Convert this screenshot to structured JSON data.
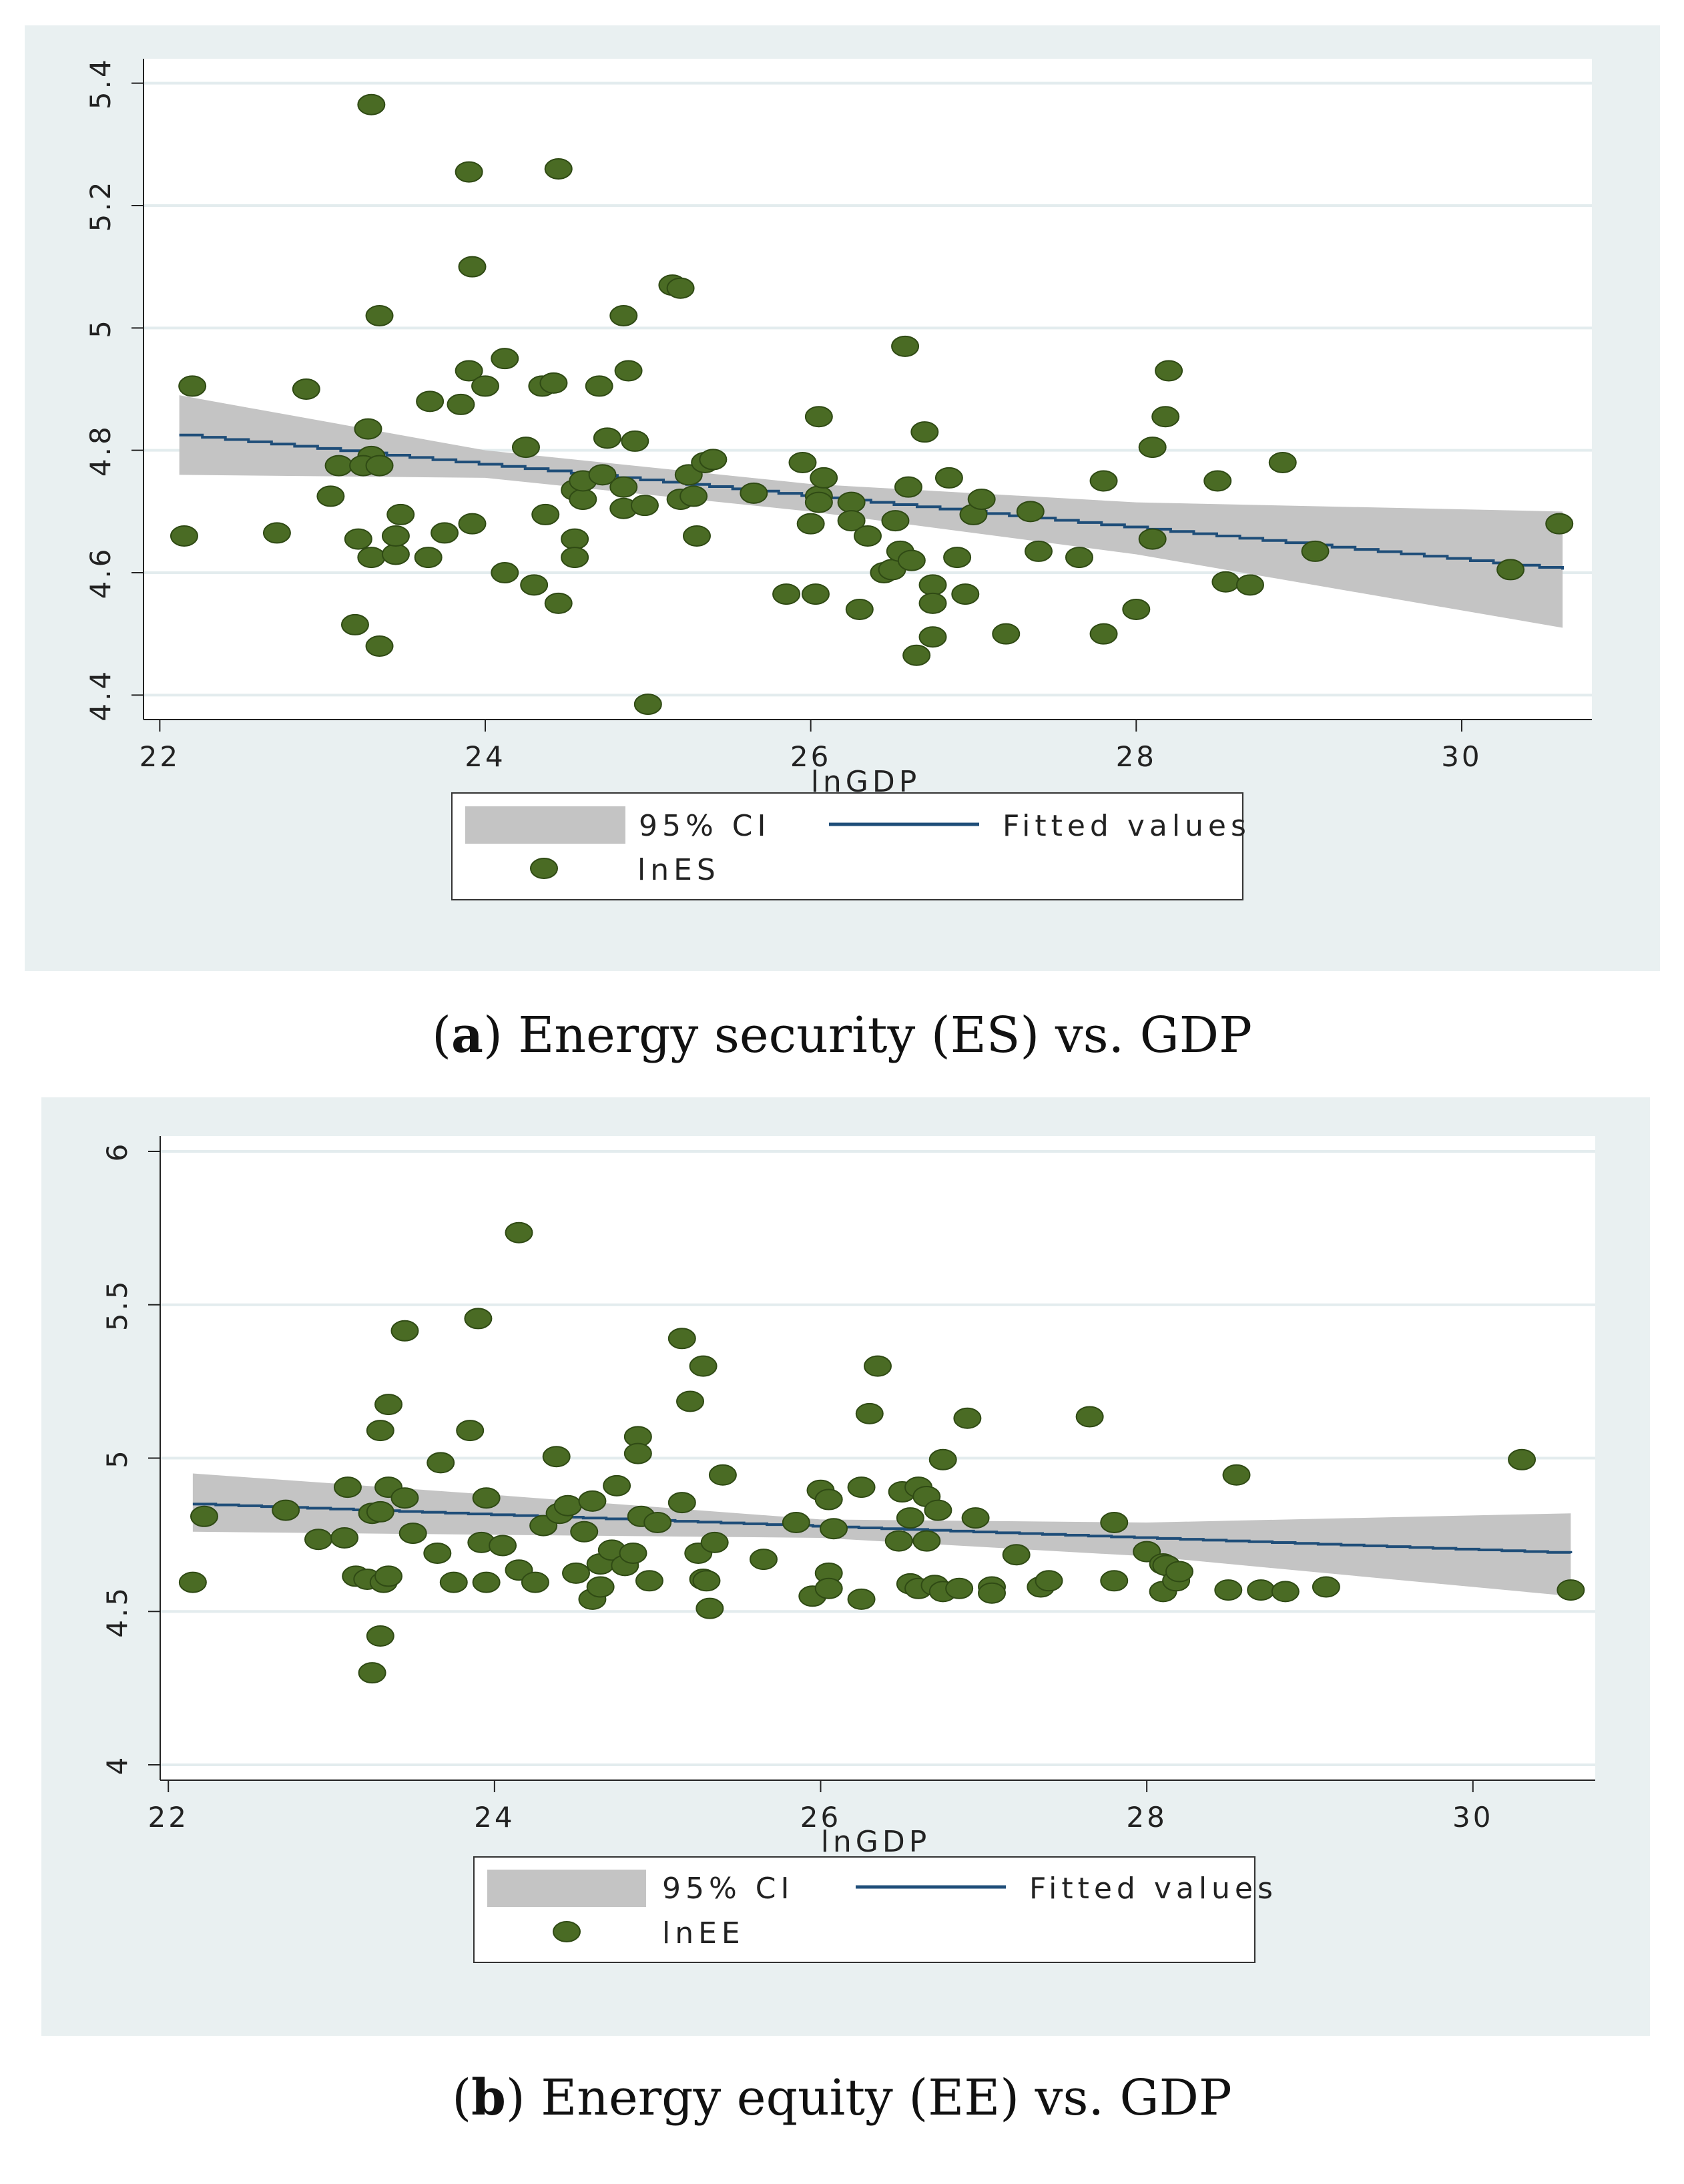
{
  "figures": [
    {
      "id": "a",
      "caption_letter": "a",
      "caption_text": ") Energy security (ES) vs. GDP",
      "caption_open": "(",
      "legend": {
        "ci": "95% CI",
        "fit": "Fitted values",
        "scatter": "lnES"
      }
    },
    {
      "id": "b",
      "caption_letter": "b",
      "caption_text": ") Energy equity (EE) vs. GDP",
      "caption_open": "(",
      "legend": {
        "ci": "95% CI",
        "fit": "Fitted values",
        "scatter": "lnEE"
      }
    }
  ],
  "colors": {
    "panel_bg": "#e9f0f1",
    "plot_bg": "#ffffff",
    "grid": "#e3ecee",
    "ci": "#c4c4c4",
    "fit": "#1f4e79",
    "point": "#4a6b24",
    "point_edge": "#2f4a14"
  },
  "chart_data": [
    {
      "type": "scatter",
      "title": "",
      "xlabel": "lnGDP",
      "ylabel": "",
      "xlim": [
        21.9,
        30.8
      ],
      "ylim": [
        4.36,
        5.44
      ],
      "xticks": [
        22,
        24,
        26,
        28,
        30
      ],
      "yticks": [
        4.4,
        4.6,
        4.8,
        5,
        5.2,
        5.4
      ],
      "xtick_labels": [
        "22",
        "24",
        "26",
        "28",
        "30"
      ],
      "ytick_labels": [
        "4.4",
        "4.6",
        "4.8",
        "5",
        "5.2",
        "5.4"
      ],
      "fit": {
        "name": "Fitted values",
        "x": [
          22.12,
          30.62
        ],
        "y": [
          4.825,
          4.605
        ]
      },
      "ci": {
        "name": "95% CI",
        "x": [
          22.12,
          24,
          26,
          28,
          30.62
        ],
        "lower": [
          4.76,
          4.755,
          4.7,
          4.63,
          4.51
        ],
        "upper": [
          4.89,
          4.8,
          4.745,
          4.715,
          4.7
        ]
      },
      "series": [
        {
          "name": "lnES",
          "points": [
            [
              22.15,
              4.66
            ],
            [
              22.2,
              4.905
            ],
            [
              22.72,
              4.665
            ],
            [
              22.9,
              4.9
            ],
            [
              23.05,
              4.725
            ],
            [
              23.1,
              4.775
            ],
            [
              23.2,
              4.515
            ],
            [
              23.22,
              4.655
            ],
            [
              23.28,
              4.835
            ],
            [
              23.3,
              4.79
            ],
            [
              23.25,
              4.775
            ],
            [
              23.3,
              4.625
            ],
            [
              23.3,
              5.365
            ],
            [
              23.35,
              4.775
            ],
            [
              23.35,
              4.48
            ],
            [
              23.35,
              5.02
            ],
            [
              23.45,
              4.63
            ],
            [
              23.45,
              4.66
            ],
            [
              23.48,
              4.695
            ],
            [
              23.65,
              4.625
            ],
            [
              23.66,
              4.88
            ],
            [
              23.75,
              4.665
            ],
            [
              23.85,
              4.875
            ],
            [
              23.9,
              4.93
            ],
            [
              23.9,
              5.255
            ],
            [
              23.92,
              5.1
            ],
            [
              23.92,
              4.68
            ],
            [
              24.0,
              4.905
            ],
            [
              24.12,
              4.6
            ],
            [
              24.12,
              4.95
            ],
            [
              24.25,
              4.805
            ],
            [
              24.3,
              4.58
            ],
            [
              24.35,
              4.905
            ],
            [
              24.37,
              4.695
            ],
            [
              24.42,
              4.91
            ],
            [
              24.45,
              4.55
            ],
            [
              24.45,
              5.26
            ],
            [
              24.55,
              4.655
            ],
            [
              24.55,
              4.625
            ],
            [
              24.55,
              4.735
            ],
            [
              24.6,
              4.72
            ],
            [
              24.6,
              4.75
            ],
            [
              24.7,
              4.905
            ],
            [
              24.72,
              4.76
            ],
            [
              24.75,
              4.82
            ],
            [
              24.85,
              4.74
            ],
            [
              24.85,
              4.705
            ],
            [
              24.85,
              5.02
            ],
            [
              24.88,
              4.93
            ],
            [
              24.92,
              4.815
            ],
            [
              24.98,
              4.71
            ],
            [
              25.0,
              4.385
            ],
            [
              25.15,
              5.07
            ],
            [
              25.2,
              5.065
            ],
            [
              25.2,
              4.72
            ],
            [
              25.25,
              4.76
            ],
            [
              25.28,
              4.725
            ],
            [
              25.3,
              4.66
            ],
            [
              25.35,
              4.78
            ],
            [
              25.4,
              4.785
            ],
            [
              25.65,
              4.73
            ],
            [
              25.85,
              4.565
            ],
            [
              25.95,
              4.78
            ],
            [
              26.0,
              4.68
            ],
            [
              26.03,
              4.565
            ],
            [
              26.05,
              4.855
            ],
            [
              26.05,
              4.725
            ],
            [
              26.05,
              4.715
            ],
            [
              26.08,
              4.755
            ],
            [
              26.25,
              4.715
            ],
            [
              26.25,
              4.685
            ],
            [
              26.3,
              4.54
            ],
            [
              26.35,
              4.66
            ],
            [
              26.45,
              4.6
            ],
            [
              26.5,
              4.605
            ],
            [
              26.52,
              4.685
            ],
            [
              26.55,
              4.635
            ],
            [
              26.58,
              4.97
            ],
            [
              26.6,
              4.74
            ],
            [
              26.62,
              4.62
            ],
            [
              26.65,
              4.465
            ],
            [
              26.7,
              4.83
            ],
            [
              26.75,
              4.58
            ],
            [
              26.75,
              4.55
            ],
            [
              26.75,
              4.495
            ],
            [
              26.85,
              4.755
            ],
            [
              26.9,
              4.625
            ],
            [
              26.95,
              4.565
            ],
            [
              27.0,
              4.695
            ],
            [
              27.05,
              4.72
            ],
            [
              27.2,
              4.5
            ],
            [
              27.35,
              4.7
            ],
            [
              27.4,
              4.635
            ],
            [
              27.65,
              4.625
            ],
            [
              27.8,
              4.5
            ],
            [
              27.8,
              4.75
            ],
            [
              28.0,
              4.54
            ],
            [
              28.1,
              4.805
            ],
            [
              28.1,
              4.655
            ],
            [
              28.18,
              4.855
            ],
            [
              28.2,
              4.93
            ],
            [
              28.5,
              4.75
            ],
            [
              28.55,
              4.585
            ],
            [
              28.7,
              4.58
            ],
            [
              28.9,
              4.78
            ],
            [
              29.1,
              4.635
            ],
            [
              30.3,
              4.605
            ],
            [
              30.6,
              4.68
            ]
          ]
        }
      ]
    },
    {
      "type": "scatter",
      "title": "",
      "xlabel": "lnGDP",
      "ylabel": "",
      "xlim": [
        21.95,
        30.75
      ],
      "ylim": [
        3.95,
        6.05
      ],
      "xticks": [
        22,
        24,
        26,
        28,
        30
      ],
      "yticks": [
        4,
        4.5,
        5,
        5.5,
        6
      ],
      "xtick_labels": [
        "22",
        "24",
        "26",
        "28",
        "30"
      ],
      "ytick_labels": [
        "4",
        "4.5",
        "5",
        "5.5",
        "6"
      ],
      "fit": {
        "name": "Fitted values",
        "x": [
          22.15,
          30.6
        ],
        "y": [
          4.85,
          4.69
        ]
      },
      "ci": {
        "name": "95% CI",
        "x": [
          22.15,
          24,
          26,
          28,
          30.6
        ],
        "lower": [
          4.76,
          4.75,
          4.74,
          4.68,
          4.55
        ],
        "upper": [
          4.95,
          4.88,
          4.8,
          4.79,
          4.82
        ]
      },
      "series": [
        {
          "name": "lnEE",
          "points": [
            [
              22.15,
              4.595
            ],
            [
              22.22,
              4.81
            ],
            [
              22.72,
              4.83
            ],
            [
              22.92,
              4.735
            ],
            [
              23.08,
              4.74
            ],
            [
              23.1,
              4.905
            ],
            [
              23.15,
              4.615
            ],
            [
              23.22,
              4.605
            ],
            [
              23.25,
              4.82
            ],
            [
              23.25,
              4.3
            ],
            [
              23.3,
              4.825
            ],
            [
              23.3,
              5.09
            ],
            [
              23.3,
              4.42
            ],
            [
              23.32,
              4.595
            ],
            [
              23.35,
              4.905
            ],
            [
              23.35,
              5.175
            ],
            [
              23.35,
              4.615
            ],
            [
              23.45,
              5.415
            ],
            [
              23.45,
              4.87
            ],
            [
              23.5,
              4.755
            ],
            [
              23.65,
              4.69
            ],
            [
              23.67,
              4.985
            ],
            [
              23.75,
              4.595
            ],
            [
              23.85,
              5.09
            ],
            [
              23.9,
              5.455
            ],
            [
              23.92,
              4.725
            ],
            [
              23.95,
              4.87
            ],
            [
              23.95,
              4.595
            ],
            [
              24.05,
              4.715
            ],
            [
              24.15,
              4.635
            ],
            [
              24.15,
              5.735
            ],
            [
              24.25,
              4.595
            ],
            [
              24.3,
              4.78
            ],
            [
              24.38,
              5.005
            ],
            [
              24.4,
              4.82
            ],
            [
              24.45,
              4.845
            ],
            [
              24.5,
              4.625
            ],
            [
              24.55,
              4.76
            ],
            [
              24.6,
              4.54
            ],
            [
              24.6,
              4.86
            ],
            [
              24.65,
              4.655
            ],
            [
              24.65,
              4.58
            ],
            [
              24.72,
              4.7
            ],
            [
              24.75,
              4.91
            ],
            [
              24.8,
              4.65
            ],
            [
              24.85,
              4.69
            ],
            [
              24.88,
              5.07
            ],
            [
              24.88,
              5.015
            ],
            [
              24.9,
              4.81
            ],
            [
              24.95,
              4.6
            ],
            [
              25.0,
              4.79
            ],
            [
              25.15,
              5.39
            ],
            [
              25.15,
              4.855
            ],
            [
              25.2,
              5.185
            ],
            [
              25.25,
              4.69
            ],
            [
              25.28,
              5.3
            ],
            [
              25.28,
              4.605
            ],
            [
              25.3,
              4.6
            ],
            [
              25.32,
              4.51
            ],
            [
              25.35,
              4.725
            ],
            [
              25.4,
              4.945
            ],
            [
              25.65,
              4.67
            ],
            [
              25.85,
              4.79
            ],
            [
              25.95,
              4.55
            ],
            [
              26.0,
              4.895
            ],
            [
              26.05,
              4.625
            ],
            [
              26.05,
              4.575
            ],
            [
              26.05,
              4.865
            ],
            [
              26.08,
              4.77
            ],
            [
              26.25,
              4.54
            ],
            [
              26.25,
              4.905
            ],
            [
              26.3,
              5.145
            ],
            [
              26.35,
              5.3
            ],
            [
              26.48,
              4.73
            ],
            [
              26.5,
              4.89
            ],
            [
              26.55,
              4.59
            ],
            [
              26.55,
              4.805
            ],
            [
              26.6,
              4.905
            ],
            [
              26.6,
              4.575
            ],
            [
              26.65,
              4.875
            ],
            [
              26.65,
              4.73
            ],
            [
              26.7,
              4.585
            ],
            [
              26.72,
              4.83
            ],
            [
              26.75,
              4.995
            ],
            [
              26.75,
              4.565
            ],
            [
              26.85,
              4.575
            ],
            [
              26.9,
              5.13
            ],
            [
              26.95,
              4.805
            ],
            [
              27.05,
              4.58
            ],
            [
              27.05,
              4.56
            ],
            [
              27.2,
              4.685
            ],
            [
              27.35,
              4.58
            ],
            [
              27.4,
              4.6
            ],
            [
              27.65,
              5.135
            ],
            [
              27.8,
              4.79
            ],
            [
              27.8,
              4.6
            ],
            [
              28.0,
              4.695
            ],
            [
              28.1,
              4.655
            ],
            [
              28.1,
              4.565
            ],
            [
              28.12,
              4.65
            ],
            [
              28.18,
              4.6
            ],
            [
              28.2,
              4.63
            ],
            [
              28.5,
              4.57
            ],
            [
              28.55,
              4.945
            ],
            [
              28.7,
              4.57
            ],
            [
              28.85,
              4.565
            ],
            [
              29.1,
              4.58
            ],
            [
              30.3,
              4.995
            ],
            [
              30.6,
              4.57
            ]
          ]
        }
      ]
    }
  ]
}
